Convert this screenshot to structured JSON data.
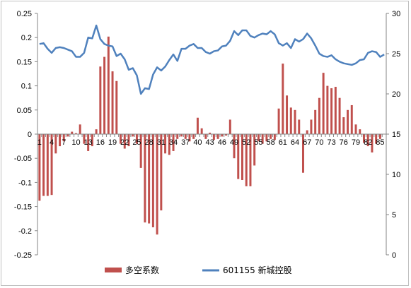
{
  "chart_data": {
    "type": "bar+line",
    "title": "",
    "xlabel": "",
    "ylabel": "",
    "x": [
      1,
      2,
      3,
      4,
      5,
      6,
      7,
      8,
      9,
      10,
      11,
      12,
      13,
      14,
      15,
      16,
      17,
      18,
      19,
      20,
      21,
      22,
      23,
      24,
      25,
      26,
      27,
      28,
      29,
      30,
      31,
      32,
      33,
      34,
      35,
      36,
      37,
      38,
      39,
      40,
      41,
      42,
      43,
      44,
      45,
      46,
      47,
      48,
      49,
      50,
      51,
      52,
      53,
      54,
      55,
      56,
      57,
      58,
      59,
      60,
      61,
      62,
      63,
      64,
      65,
      66,
      67,
      68,
      69,
      70,
      71,
      72,
      73,
      74,
      75,
      76,
      77,
      78,
      79,
      80,
      81,
      82,
      83,
      84,
      85,
      86
    ],
    "x_tick_labels": [
      "1",
      "4",
      "7",
      "10",
      "13",
      "16",
      "19",
      "22",
      "25",
      "28",
      "31",
      "34",
      "37",
      "40",
      "43",
      "46",
      "49",
      "52",
      "55",
      "58",
      "61",
      "64",
      "67",
      "70",
      "73",
      "76",
      "79",
      "82",
      "85"
    ],
    "x_tick_values": [
      1,
      4,
      7,
      10,
      13,
      16,
      19,
      22,
      25,
      28,
      31,
      34,
      37,
      40,
      43,
      46,
      49,
      52,
      55,
      58,
      61,
      64,
      67,
      70,
      73,
      76,
      79,
      82,
      85
    ],
    "y_left": {
      "min": -0.25,
      "max": 0.25,
      "step": 0.05,
      "tick_labels": [
        "-0.25",
        "-0.2",
        "-0.15",
        "-0.1",
        "-0.05",
        "0",
        "0.05",
        "0.1",
        "0.15",
        "0.2",
        "0.25"
      ]
    },
    "y_right": {
      "min": 0,
      "max": 30,
      "step": 5,
      "tick_labels": [
        "0",
        "5",
        "10",
        "15",
        "20",
        "25",
        "30"
      ]
    },
    "grid": false,
    "legend_position": "bottom",
    "series": [
      {
        "name": "多空系数",
        "type": "bar",
        "axis": "left",
        "color": "#C0504D",
        "values": [
          -0.138,
          -0.128,
          -0.128,
          -0.126,
          -0.04,
          -0.025,
          -0.015,
          -0.005,
          0.005,
          0.002,
          0.02,
          -0.02,
          -0.035,
          -0.025,
          0.01,
          0.14,
          0.16,
          0.202,
          0.13,
          0.11,
          -0.02,
          -0.03,
          -0.025,
          -0.005,
          -0.02,
          -0.07,
          -0.183,
          -0.185,
          -0.193,
          -0.208,
          -0.158,
          -0.04,
          -0.043,
          -0.035,
          -0.01,
          -0.005,
          -0.01,
          -0.015,
          -0.01,
          0.034,
          0.012,
          -0.01,
          0.003,
          -0.012,
          -0.01,
          -0.005,
          -0.003,
          0.03,
          -0.05,
          -0.093,
          -0.095,
          -0.108,
          -0.108,
          -0.065,
          -0.015,
          -0.02,
          -0.015,
          -0.01,
          -0.012,
          0.053,
          0.146,
          0.08,
          0.055,
          0.05,
          0.03,
          -0.08,
          0.008,
          0.03,
          0.05,
          0.075,
          0.127,
          0.1,
          0.095,
          0.098,
          0.075,
          0.035,
          0.05,
          0.06,
          0.02,
          0.01,
          -0.018,
          -0.025,
          -0.038,
          -0.02,
          -0.01,
          0.0
        ]
      },
      {
        "name": "601155 新城控股",
        "type": "line",
        "axis": "right",
        "color": "#4F81BD",
        "values": [
          26.2,
          26.3,
          25.6,
          25.1,
          25.7,
          25.8,
          25.7,
          25.5,
          25.3,
          24.6,
          24.6,
          25.1,
          27.0,
          26.9,
          28.5,
          26.8,
          26.2,
          26.0,
          25.9,
          24.7,
          25.0,
          24.3,
          23.0,
          23.2,
          22.3,
          20.0,
          20.7,
          20.6,
          22.4,
          23.3,
          22.9,
          23.4,
          24.2,
          24.9,
          24.1,
          25.6,
          25.6,
          26.0,
          26.2,
          25.7,
          25.7,
          25.2,
          25.0,
          25.3,
          25.4,
          25.9,
          26.0,
          26.6,
          27.8,
          27.3,
          27.9,
          27.9,
          27.2,
          27.0,
          27.3,
          27.5,
          27.4,
          27.8,
          27.4,
          26.3,
          26.0,
          26.3,
          25.7,
          26.8,
          26.5,
          26.8,
          27.5,
          26.9,
          26.0,
          25.0,
          24.7,
          24.6,
          24.8,
          24.3,
          24.0,
          23.8,
          23.7,
          23.6,
          23.8,
          24.2,
          24.3,
          25.1,
          25.3,
          25.2,
          24.6,
          24.9
        ]
      }
    ]
  }
}
